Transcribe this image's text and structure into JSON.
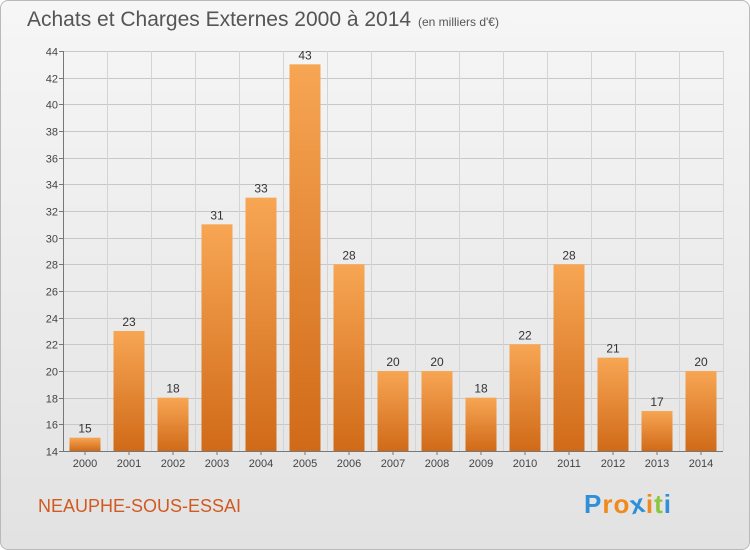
{
  "header": {
    "title": "Achats et Charges Externes 2000 à 2014",
    "subtitle": "(en milliers d'€)"
  },
  "footer": {
    "place": "NEAUPHE-SOUS-ESSAI",
    "logo": "Proxiti"
  },
  "colors": {
    "bar_light": "#f7a654",
    "bar_dark": "#d06a18",
    "place_text": "#d15a21",
    "logo_letters": [
      "#2f8fd8",
      "#f08a1c",
      "#f08a1c",
      "#2f8fd8",
      "#f08a1c",
      "#8cc63f",
      "#2f8fd8"
    ]
  },
  "chart_data": {
    "type": "bar",
    "categories": [
      "2000",
      "2001",
      "2002",
      "2003",
      "2004",
      "2005",
      "2006",
      "2007",
      "2008",
      "2009",
      "2010",
      "2011",
      "2012",
      "2013",
      "2014"
    ],
    "values": [
      15,
      23,
      18,
      31,
      33,
      43,
      28,
      20,
      20,
      18,
      22,
      28,
      21,
      17,
      20
    ],
    "ylim": [
      14,
      44
    ],
    "yticks": [
      14,
      16,
      18,
      20,
      22,
      24,
      26,
      28,
      30,
      32,
      34,
      36,
      38,
      40,
      42,
      44
    ],
    "title": "Achats et Charges Externes 2000 à 2014",
    "subtitle": "(en milliers d'€)",
    "grid": true,
    "data_labels": true
  }
}
